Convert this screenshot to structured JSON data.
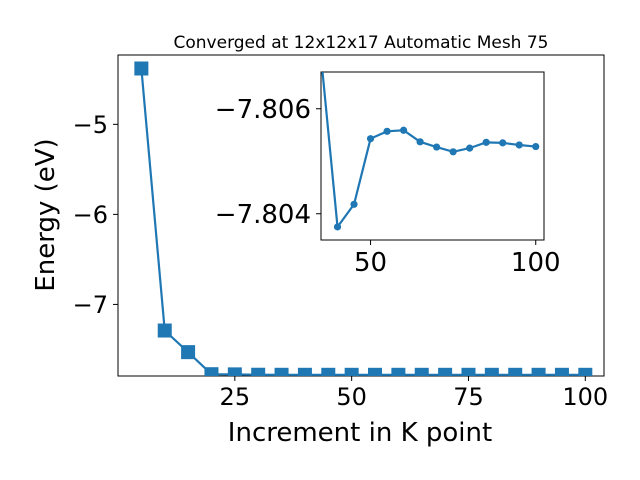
{
  "chart_data": [
    {
      "type": "line",
      "title": "Converged at 12x12x17 Automatic Mesh 75",
      "xlabel": "Increment in K point",
      "ylabel": "Energy (eV)",
      "xlim": [
        0,
        104
      ],
      "ylim": [
        -7.795,
        -4.23
      ],
      "xticks": [
        25,
        50,
        75,
        100
      ],
      "yticks": [
        -5,
        -6,
        -7
      ],
      "xtick_labels": [
        "25",
        "50",
        "75",
        "100"
      ],
      "ytick_labels": [
        "−5",
        "−6",
        "−7"
      ],
      "grid": false,
      "marker": "square",
      "color": "#1f77b4",
      "series": [
        {
          "x": [
            5,
            10,
            15,
            20,
            25,
            30,
            35,
            40,
            45,
            50,
            55,
            60,
            65,
            70,
            75,
            80,
            85,
            90,
            95,
            100
          ],
          "y": [
            -4.38,
            -7.29,
            -7.53,
            -7.775,
            -7.777,
            -7.781,
            -7.7816,
            -7.7817,
            -7.7817,
            -7.7818,
            -7.7818,
            -7.7817,
            -7.7818,
            -7.7818,
            -7.7817,
            -7.7818,
            -7.7818,
            -7.7818,
            -7.7818,
            -7.7818
          ]
        }
      ]
    },
    {
      "type": "line",
      "title": "",
      "xlabel": "",
      "ylabel": "",
      "xlim": [
        35,
        102.5
      ],
      "ylim": [
        -7.8035,
        -7.8067
      ],
      "y_inverted": true,
      "xticks": [
        50,
        100
      ],
      "yticks": [
        -7.806,
        -7.804
      ],
      "xtick_labels": [
        "50",
        "100"
      ],
      "ytick_labels": [
        "−7.806",
        "−7.804"
      ],
      "grid": false,
      "marker": "circle",
      "color": "#1f77b4",
      "series": [
        {
          "x": [
            35,
            40,
            45,
            50,
            55,
            60,
            65,
            70,
            75,
            80,
            85,
            90,
            95,
            100
          ],
          "y": [
            -7.807,
            -7.80375,
            -7.80418,
            -7.80543,
            -7.80557,
            -7.80559,
            -7.80537,
            -7.80527,
            -7.80518,
            -7.80525,
            -7.80536,
            -7.80535,
            -7.80531,
            -7.80528
          ]
        }
      ]
    }
  ]
}
